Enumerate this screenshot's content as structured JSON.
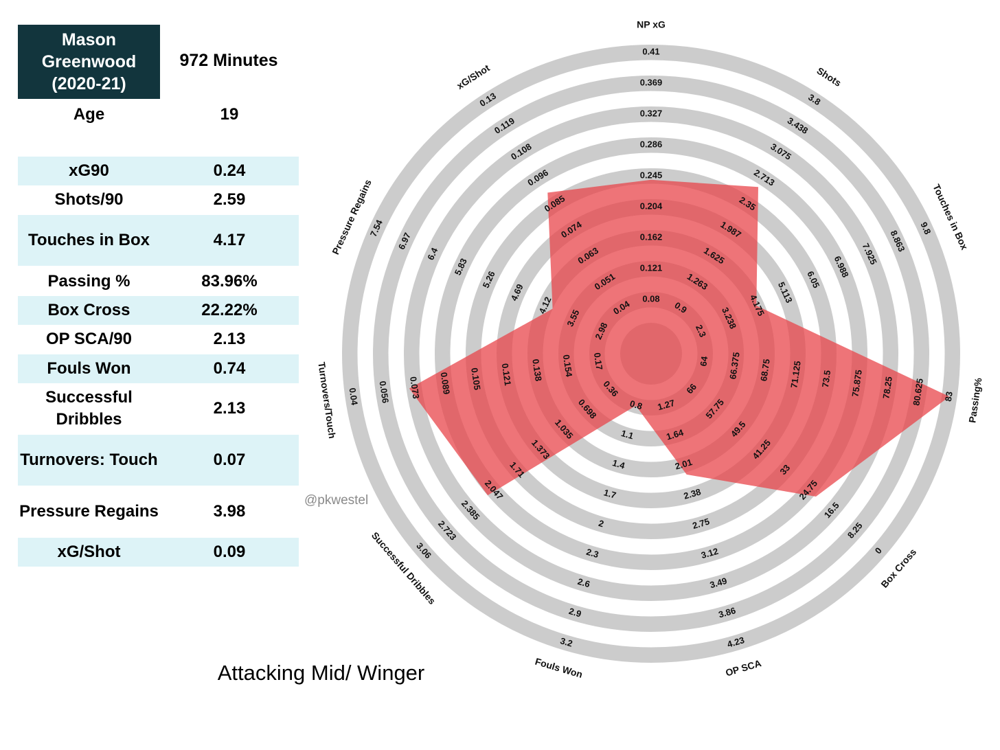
{
  "player": {
    "name_lines": [
      "Mason",
      "Greenwood",
      "(2020-21)"
    ],
    "minutes": "972 Minutes",
    "age_label": "Age",
    "age_value": "19"
  },
  "stats": [
    {
      "label": "xG90",
      "value": "0.24"
    },
    {
      "label": "Shots/90",
      "value": "2.59"
    },
    {
      "label": "Touches in Box",
      "value": "4.17"
    },
    {
      "label": "Passing %",
      "value": "83.96%"
    },
    {
      "label": "Box Cross",
      "value": "22.22%"
    },
    {
      "label": "OP SCA/90",
      "value": "2.13"
    },
    {
      "label": "Fouls Won",
      "value": "0.74"
    },
    {
      "label": "Successful Dribbles",
      "value": "2.13"
    },
    {
      "label": "Turnovers: Touch",
      "value": "0.07"
    },
    {
      "label": "Pressure Regains",
      "value": "3.98"
    },
    {
      "label": "xG/Shot",
      "value": "0.09"
    }
  ],
  "role": "Attacking Mid/ Winger",
  "watermark": "@pkwestel",
  "colors": {
    "name_box": "#12353d",
    "row_shade": "#ddf3f7",
    "ring": "#cccccc",
    "polygon_fill": "#e8464b"
  },
  "chart_data": {
    "type": "radar",
    "axes": [
      {
        "label": "NP xG",
        "value": 0.24,
        "ticks": [
          "0.08",
          "0.121",
          "0.162",
          "0.204",
          "0.245",
          "0.286",
          "0.327",
          "0.369",
          "0.41"
        ]
      },
      {
        "label": "Shots",
        "value": 2.59,
        "ticks": [
          "0.9",
          "1.263",
          "1.625",
          "1.987",
          "2.35",
          "2.713",
          "3.075",
          "3.438",
          "3.8"
        ]
      },
      {
        "label": "Touches in Box",
        "value": 4.17,
        "ticks": [
          "2.3",
          "3.238",
          "4.175",
          "5.113",
          "6.05",
          "6.988",
          "7.925",
          "8.863",
          "9.8"
        ]
      },
      {
        "label": "Passing%",
        "value": 83.96,
        "ticks": [
          "64",
          "66.375",
          "68.75",
          "71.125",
          "73.5",
          "75.875",
          "78.25",
          "80.625",
          "83"
        ]
      },
      {
        "label": "Box Cross",
        "value": 22.22,
        "ticks": [
          "66",
          "57.75",
          "49.5",
          "41.25",
          "33",
          "24.75",
          "16.5",
          "8.25",
          "0"
        ]
      },
      {
        "label": "OP SCA",
        "value": 2.13,
        "ticks": [
          "1.27",
          "1.64",
          "2.01",
          "2.38",
          "2.75",
          "3.12",
          "3.49",
          "3.86",
          "4.23"
        ]
      },
      {
        "label": "Fouls Won",
        "value": 0.74,
        "ticks": [
          "0.8",
          "1.1",
          "1.4",
          "1.7",
          "2",
          "2.3",
          "2.6",
          "2.9",
          "3.2"
        ]
      },
      {
        "label": "Successful Dribbles",
        "value": 2.13,
        "ticks": [
          "0.36",
          "0.698",
          "1.035",
          "1.373",
          "1.71",
          "2.047",
          "2.385",
          "2.723",
          "3.06"
        ]
      },
      {
        "label": "Turnovers/Touch",
        "value": 0.07,
        "ticks": [
          "0.17",
          "0.154",
          "0.138",
          "0.121",
          "0.105",
          "0.089",
          "0.073",
          "0.056",
          "0.04"
        ]
      },
      {
        "label": "Pressure Regains",
        "value": 3.98,
        "ticks": [
          "2.98",
          "3.55",
          "4.12",
          "4.69",
          "5.26",
          "5.83",
          "6.4",
          "6.97",
          "7.54"
        ]
      },
      {
        "label": "xG/Shot",
        "value": 0.09,
        "ticks": [
          "0.04",
          "0.051",
          "0.063",
          "0.074",
          "0.085",
          "0.096",
          "0.108",
          "0.119",
          "0.13"
        ]
      }
    ],
    "ring_count": 9
  }
}
